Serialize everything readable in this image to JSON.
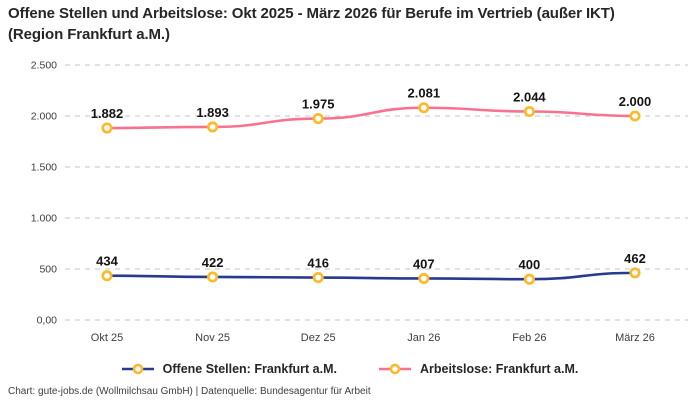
{
  "title": "Offene Stellen und Arbeitslose: Okt 2025 - März 2026 für Berufe im Vertrieb (außer IKT) (Region Frankfurt a.M.)",
  "footer": "Chart: gute-jobs.de (Wollmilchsau GmbH) | Datenquelle: Bundesagentur für Arbeit",
  "colors": {
    "open_positions_line": "#283A90",
    "unemployed_line": "#F9718D",
    "marker_ring": "#FBBA2B",
    "marker_fill": "#FFFFFF",
    "gridline": "#C6C6C6",
    "axis_text": "#3D3D3D",
    "data_label": "#141414"
  },
  "chart_data": {
    "type": "line",
    "title": "Offene Stellen und Arbeitslose: Okt 2025 - März 2026 für Berufe im Vertrieb (außer IKT) (Region Frankfurt a.M.)",
    "categories": [
      "Okt 25",
      "Nov 25",
      "Dez 25",
      "Jan 26",
      "Feb 26",
      "März 26"
    ],
    "series": [
      {
        "id": "offene-stellen",
        "name": "Offene Stellen: Frankfurt a.M.",
        "color_key": "open_positions_line",
        "values": [
          434,
          422,
          416,
          407,
          400,
          462
        ],
        "labels": [
          "434",
          "422",
          "416",
          "407",
          "400",
          "462"
        ]
      },
      {
        "id": "arbeitslose",
        "name": "Arbeitslose: Frankfurt a.M.",
        "color_key": "unemployed_line",
        "values": [
          1882,
          1893,
          1975,
          2081,
          2044,
          2000
        ],
        "labels": [
          "1.882",
          "1.893",
          "1.975",
          "2.081",
          "2.044",
          "2.000"
        ]
      }
    ],
    "y_ticks": [
      {
        "value": 2500,
        "label": "2.500"
      },
      {
        "value": 2000,
        "label": "2.000"
      },
      {
        "value": 1500,
        "label": "1.500"
      },
      {
        "value": 1000,
        "label": "1.000"
      },
      {
        "value": 500,
        "label": "500"
      },
      {
        "value": 0,
        "label": "0,00"
      }
    ],
    "ylim": [
      0,
      2500
    ],
    "grid": true,
    "grid_style": "dashed",
    "legend_position": "bottom",
    "data_labels": true
  }
}
